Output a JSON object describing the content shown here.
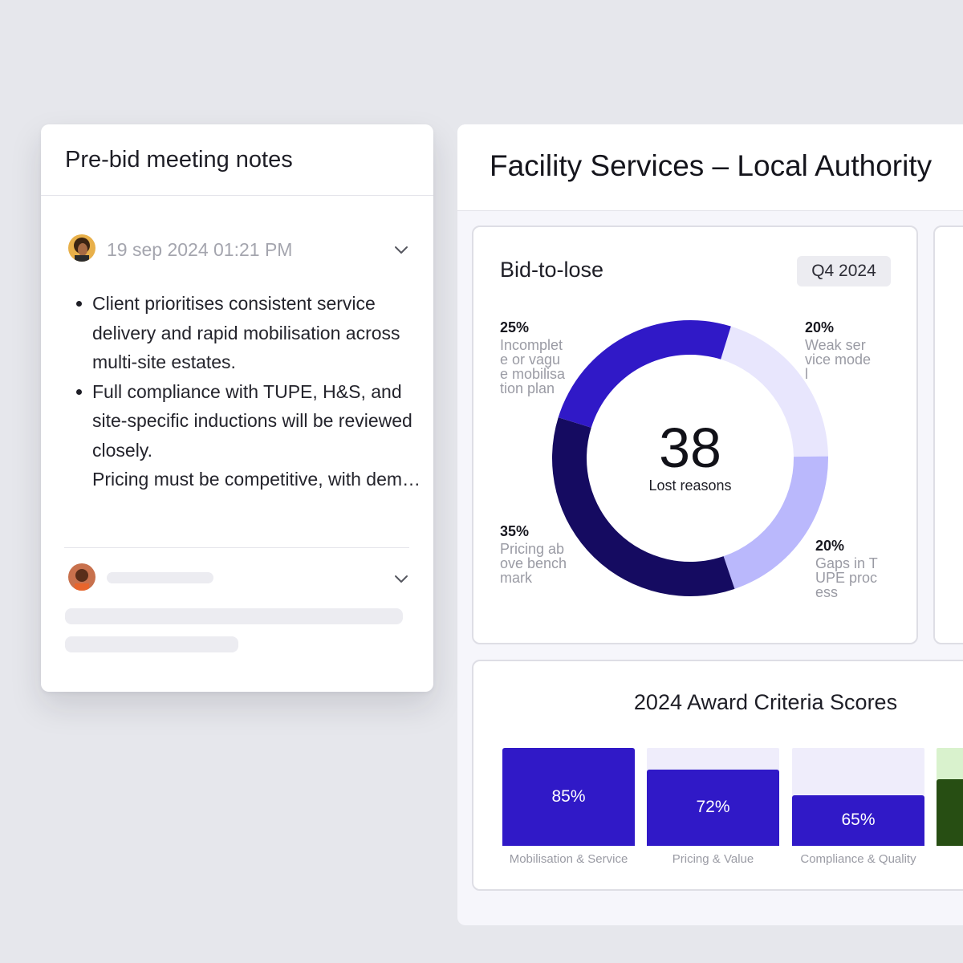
{
  "notes": {
    "title": "Pre-bid meeting notes",
    "entry1": {
      "timestamp": "19 sep 2024 01:21 PM",
      "bullets": [
        "Client prioritises consistent service delivery and rapid mobilisation across multi-site estates.",
        "Full compliance with TUPE, H&S, and site-specific inductions will be reviewed closely.",
        "Pricing must be competitive, with demonstrable added value (e.g. inn..."
      ]
    }
  },
  "panel": {
    "title": "Facility Services – Local Authority"
  },
  "donut_card": {
    "title": "Bid-to-lose",
    "period": "Q4 2024",
    "center_value": "38",
    "center_label": "Lost reasons"
  },
  "bars_card": {
    "title": "2024 Award Criteria Scores"
  },
  "colors": {
    "accent": "#3019c7",
    "dark": "#150b61",
    "light": "#bab8fc",
    "pale": "#e8e6fd",
    "green_dark": "#274e13",
    "green_light": "#d9f2cd"
  },
  "chart_data": [
    {
      "type": "pie",
      "title": "Bid-to-lose",
      "slices": [
        {
          "label": "Incomplete or vague mobilisation plan",
          "pct_text": "25%",
          "value": 25,
          "color": "#3019c7"
        },
        {
          "label": "Weak service model",
          "pct_text": "20%",
          "value": 20,
          "color": "#e8e6fd"
        },
        {
          "label": "Gaps in TUPE process",
          "pct_text": "20%",
          "value": 20,
          "color": "#bab8fc"
        },
        {
          "label": "Pricing above benchmark",
          "pct_text": "35%",
          "value": 35,
          "color": "#150b61"
        }
      ]
    },
    {
      "type": "bar",
      "title": "2024 Award Criteria Scores",
      "categories": [
        "Mobilisation & Service",
        "Pricing & Value",
        "Compliance & Quality"
      ],
      "values": [
        85,
        72,
        65
      ],
      "labels": [
        "85%",
        "72%",
        "65%"
      ],
      "ylim": [
        0,
        100
      ]
    }
  ]
}
